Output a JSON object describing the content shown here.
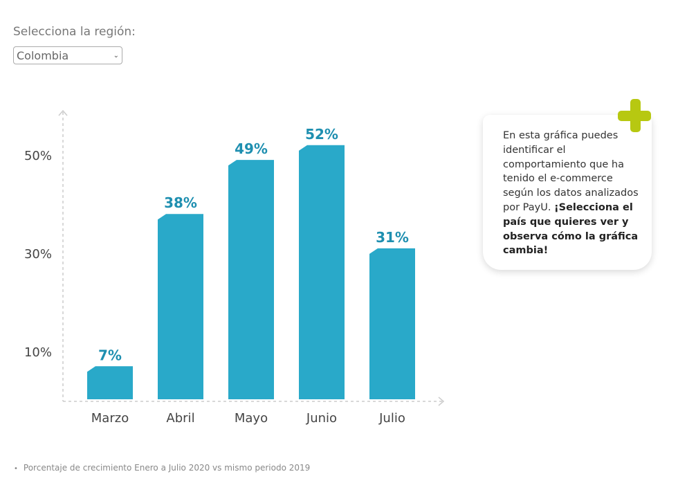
{
  "region_selector": {
    "label": "Selecciona la región:",
    "value": "Colombia"
  },
  "info_card": {
    "text": "En esta gráfica puedes identificar el comportamiento que ha tenido el e-commerce según los datos analizados por PayU.",
    "bold_text": "¡Selecciona el país que quieres ver y observa cómo la gráfica cambia!"
  },
  "footnote": "Porcentaje de crecimiento Enero a Julio 2020 vs mismo periodo 2019",
  "colors": {
    "bar": "#29a9c9",
    "label": "#1e8fb0",
    "accent": "#b7c811"
  },
  "chart_data": {
    "type": "bar",
    "title": "",
    "xlabel": "",
    "ylabel": "",
    "categories": [
      "Marzo",
      "Abril",
      "Mayo",
      "Junio",
      "Julio"
    ],
    "values": [
      7,
      38,
      49,
      52,
      31
    ],
    "value_labels": [
      "7%",
      "38%",
      "49%",
      "52%",
      "31%"
    ],
    "yticks": [
      10,
      30,
      50
    ],
    "ytick_labels": [
      "10%",
      "30%",
      "50%"
    ],
    "ylim": [
      0,
      60
    ],
    "grid": false
  }
}
